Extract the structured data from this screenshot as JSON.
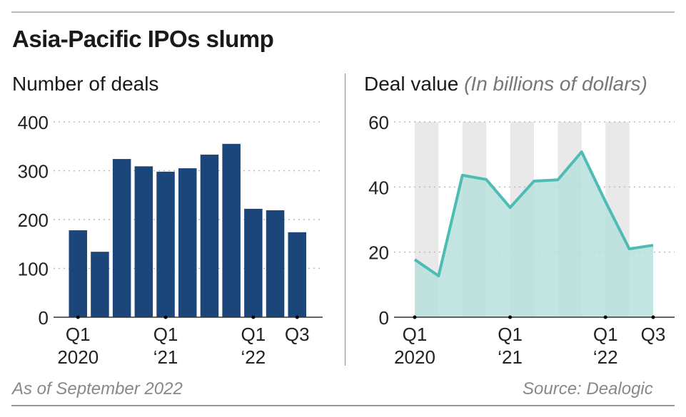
{
  "title": "Asia-Pacific IPOs slump",
  "footer": {
    "note": "As of September 2022",
    "source": "Source: Dealogic"
  },
  "chart_data": [
    {
      "type": "bar",
      "title": "Number of deals",
      "color": "#1b4679",
      "categories": [
        "Q1 2020",
        "Q2 2020",
        "Q3 2020",
        "Q4 2020",
        "Q1 2021",
        "Q2 2021",
        "Q3 2021",
        "Q4 2021",
        "Q1 2022",
        "Q2 2022",
        "Q3 2022"
      ],
      "values": [
        178,
        134,
        324,
        309,
        298,
        305,
        333,
        355,
        222,
        219,
        174
      ],
      "ylim": [
        0,
        400
      ],
      "yticks": [
        0,
        100,
        200,
        300,
        400
      ],
      "xticks": [
        {
          "index": 0,
          "label": [
            "Q1",
            "2020"
          ]
        },
        {
          "index": 4,
          "label": [
            "Q1",
            "‘21"
          ]
        },
        {
          "index": 8,
          "label": [
            "Q1",
            "‘22"
          ]
        },
        {
          "index": 10,
          "label": [
            "Q3",
            ""
          ]
        }
      ],
      "grid": true
    },
    {
      "type": "area",
      "title": "Deal value",
      "subtitle": "(In billions of dollars)",
      "color": "#4dbdb3",
      "fill": "#b9e0dd",
      "categories": [
        "Q1 2020",
        "Q2 2020",
        "Q3 2020",
        "Q4 2020",
        "Q1 2021",
        "Q2 2021",
        "Q3 2021",
        "Q4 2021",
        "Q1 2022",
        "Q2 2022",
        "Q3 2022"
      ],
      "values": [
        17.7,
        12.7,
        43.6,
        42.3,
        33.7,
        41.8,
        42.2,
        50.8,
        35.5,
        21.0,
        22.1
      ],
      "ylim": [
        0,
        60
      ],
      "yticks": [
        0,
        20,
        40,
        60
      ],
      "xticks": [
        {
          "index": 0,
          "label": [
            "Q1",
            "2020"
          ]
        },
        {
          "index": 4,
          "label": [
            "Q1",
            "‘21"
          ]
        },
        {
          "index": 8,
          "label": [
            "Q1",
            "‘22"
          ]
        },
        {
          "index": 10,
          "label": [
            "Q3",
            ""
          ]
        }
      ],
      "grid": true
    }
  ]
}
